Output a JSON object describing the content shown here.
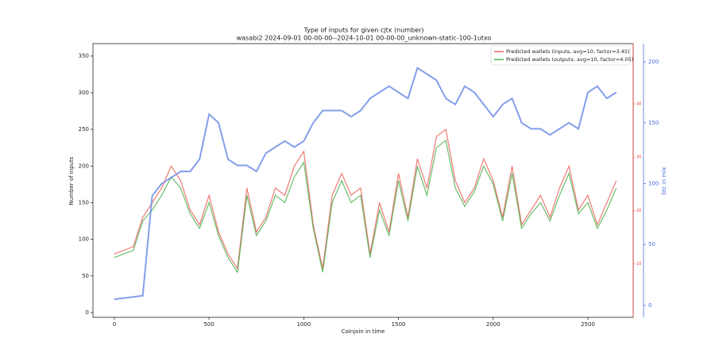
{
  "chart_data": {
    "type": "line",
    "title": "Type of inputs for given cjtx (number)",
    "subtitle": "wasabi2 2024-09-01 00-00-00--2024-10-01 00-00-00_unknown-static-100-1utxo",
    "xlabel": "Coinjoin in time",
    "ylabel": "Number of inputs",
    "y2label": "btc in mix",
    "x": [
      0,
      50,
      100,
      150,
      200,
      250,
      300,
      350,
      400,
      450,
      500,
      550,
      600,
      650,
      700,
      750,
      800,
      850,
      900,
      950,
      1000,
      1050,
      1100,
      1150,
      1200,
      1250,
      1300,
      1350,
      1400,
      1450,
      1500,
      1550,
      1600,
      1650,
      1700,
      1750,
      1800,
      1850,
      1900,
      1950,
      2000,
      2050,
      2100,
      2150,
      2200,
      2250,
      2300,
      2350,
      2400,
      2450,
      2500,
      2550,
      2600,
      2650
    ],
    "series": [
      {
        "name": "Predicted wallets (inputs, avg=10, factor=3.45)",
        "color": "#e8413a",
        "values": [
          80,
          85,
          90,
          130,
          150,
          170,
          200,
          180,
          140,
          120,
          160,
          110,
          80,
          60,
          170,
          110,
          130,
          170,
          160,
          200,
          220,
          120,
          60,
          160,
          190,
          160,
          170,
          80,
          150,
          110,
          190,
          130,
          210,
          170,
          240,
          250,
          180,
          150,
          170,
          210,
          180,
          130,
          200,
          120,
          140,
          160,
          130,
          170,
          200,
          140,
          160,
          120,
          150,
          180
        ]
      },
      {
        "name": "Predicted wallets (outputs, avg=10, factor=4.05)",
        "color": "#2ca02c",
        "values": [
          75,
          80,
          85,
          125,
          140,
          160,
          185,
          170,
          135,
          115,
          150,
          105,
          75,
          55,
          160,
          105,
          125,
          160,
          150,
          185,
          205,
          115,
          55,
          150,
          180,
          150,
          160,
          75,
          140,
          105,
          180,
          125,
          200,
          160,
          225,
          235,
          170,
          145,
          165,
          200,
          175,
          125,
          190,
          115,
          135,
          150,
          125,
          160,
          190,
          135,
          150,
          115,
          140,
          170
        ]
      },
      {
        "color": "#6f8ee6",
        "axis": "y2",
        "values": [
          5,
          6,
          7,
          8,
          90,
          100,
          105,
          110,
          110,
          120,
          157,
          150,
          120,
          115,
          115,
          110,
          125,
          130,
          135,
          130,
          135,
          150,
          160,
          160,
          160,
          155,
          160,
          170,
          175,
          180,
          175,
          170,
          195,
          190,
          185,
          170,
          165,
          180,
          175,
          165,
          155,
          165,
          170,
          150,
          145,
          145,
          140,
          145,
          150,
          145,
          175,
          180,
          170,
          175
        ]
      }
    ],
    "xlim": [
      -113,
      2739
    ],
    "xticks": [
      0,
      500,
      1000,
      1500,
      2000,
      2500
    ],
    "ylim": [
      -6.5,
      367
    ],
    "yticks": [
      0,
      50,
      100,
      150,
      200,
      250,
      300,
      350
    ],
    "y2lim": [
      -9.8,
      215
    ],
    "y2ticks": [
      0,
      50,
      100,
      150,
      200
    ],
    "y2color": "#4a6ee0",
    "y3lim": [
      0,
      51.3
    ],
    "y3ticks": [
      10,
      20,
      30,
      40
    ],
    "y3color": "#e8413a",
    "legend": "upper right"
  }
}
